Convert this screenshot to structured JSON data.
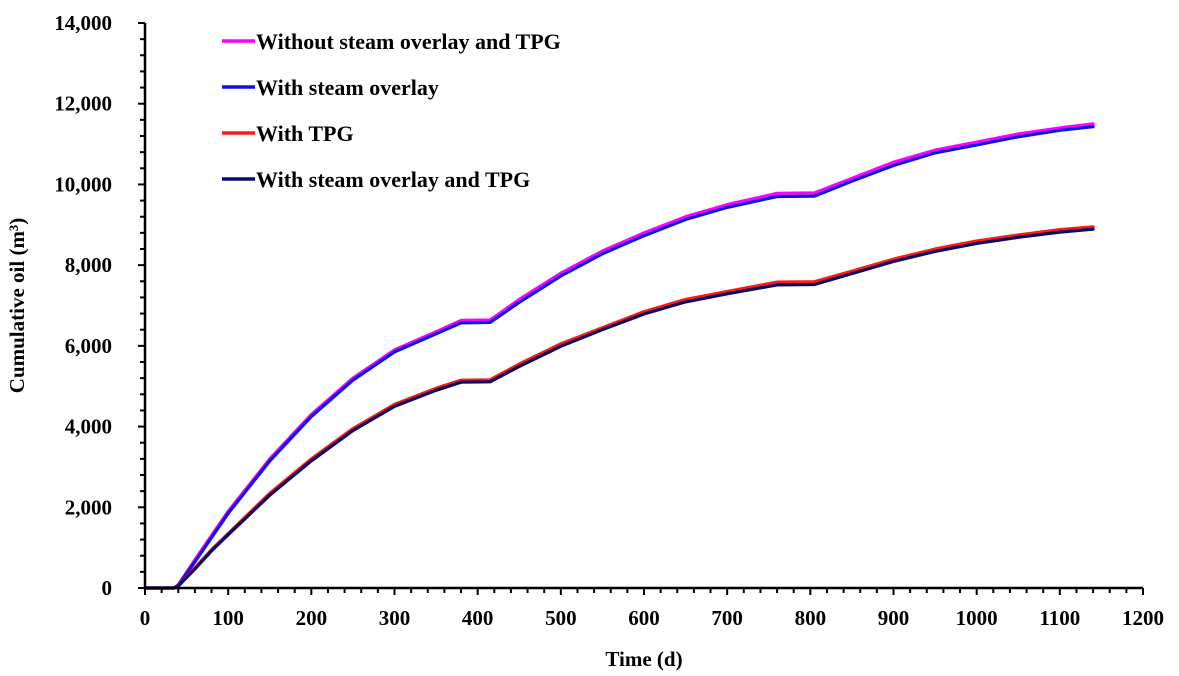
{
  "chart_data": {
    "type": "line",
    "title": "",
    "xlabel": "Time (d)",
    "ylabel": "Cumulative oil (m³)",
    "xlim": [
      0,
      1200
    ],
    "ylim": [
      0,
      14000
    ],
    "x_ticks": [
      0,
      100,
      200,
      300,
      400,
      500,
      600,
      700,
      800,
      900,
      1000,
      1100,
      1200
    ],
    "x_tick_labels": [
      "0",
      "100",
      "200",
      "300",
      "400",
      "500",
      "600",
      "700",
      "800",
      "900",
      "1000",
      "1100",
      "1200"
    ],
    "y_ticks": [
      0,
      2000,
      4000,
      6000,
      8000,
      10000,
      12000,
      14000
    ],
    "y_tick_labels": [
      "0",
      "2,000",
      "4,000",
      "6,000",
      "8,000",
      "10,000",
      "12,000",
      "14,000"
    ],
    "grid": false,
    "legend_position": "top-left",
    "series": [
      {
        "name": "Without steam overlay and TPG",
        "color": "#ff00ff",
        "x": [
          0,
          35,
          40,
          60,
          80,
          100,
          150,
          200,
          250,
          300,
          350,
          380,
          415,
          450,
          500,
          550,
          600,
          650,
          700,
          760,
          805,
          850,
          900,
          950,
          1000,
          1050,
          1100,
          1140
        ],
        "y": [
          0,
          0,
          80,
          700,
          1300,
          1900,
          3200,
          4300,
          5200,
          5900,
          6350,
          6630,
          6640,
          7150,
          7800,
          8350,
          8800,
          9200,
          9500,
          9780,
          9790,
          10150,
          10550,
          10850,
          11050,
          11250,
          11400,
          11500
        ]
      },
      {
        "name": "With steam overlay",
        "color": "#0a12e6",
        "x": [
          0,
          35,
          40,
          60,
          80,
          100,
          150,
          200,
          250,
          300,
          350,
          380,
          415,
          450,
          500,
          550,
          600,
          650,
          700,
          760,
          805,
          850,
          900,
          950,
          1000,
          1050,
          1100,
          1140
        ],
        "y": [
          0,
          0,
          70,
          650,
          1250,
          1850,
          3150,
          4250,
          5150,
          5850,
          6300,
          6570,
          6580,
          7080,
          7730,
          8280,
          8730,
          9130,
          9430,
          9700,
          9710,
          10080,
          10470,
          10780,
          10980,
          11180,
          11340,
          11430
        ]
      },
      {
        "name": "With TPG",
        "color": "#ff1a1a",
        "x": [
          0,
          35,
          40,
          60,
          80,
          100,
          150,
          200,
          250,
          300,
          350,
          380,
          415,
          450,
          500,
          550,
          600,
          650,
          700,
          760,
          805,
          850,
          900,
          950,
          1000,
          1050,
          1100,
          1140
        ],
        "y": [
          0,
          0,
          60,
          500,
          950,
          1350,
          2350,
          3200,
          3950,
          4550,
          4950,
          5150,
          5160,
          5550,
          6050,
          6450,
          6850,
          7150,
          7350,
          7580,
          7590,
          7850,
          8150,
          8400,
          8600,
          8750,
          8880,
          8950
        ]
      },
      {
        "name": "With steam overlay and TPG",
        "color": "#0a0a66",
        "x": [
          0,
          35,
          40,
          60,
          80,
          100,
          150,
          200,
          250,
          300,
          350,
          380,
          415,
          450,
          500,
          550,
          600,
          650,
          700,
          760,
          805,
          850,
          900,
          950,
          1000,
          1050,
          1100,
          1140
        ],
        "y": [
          0,
          0,
          50,
          470,
          920,
          1320,
          2300,
          3150,
          3900,
          4500,
          4900,
          5100,
          5110,
          5490,
          5990,
          6400,
          6790,
          7090,
          7290,
          7510,
          7520,
          7790,
          8090,
          8340,
          8540,
          8690,
          8820,
          8890
        ]
      }
    ]
  }
}
